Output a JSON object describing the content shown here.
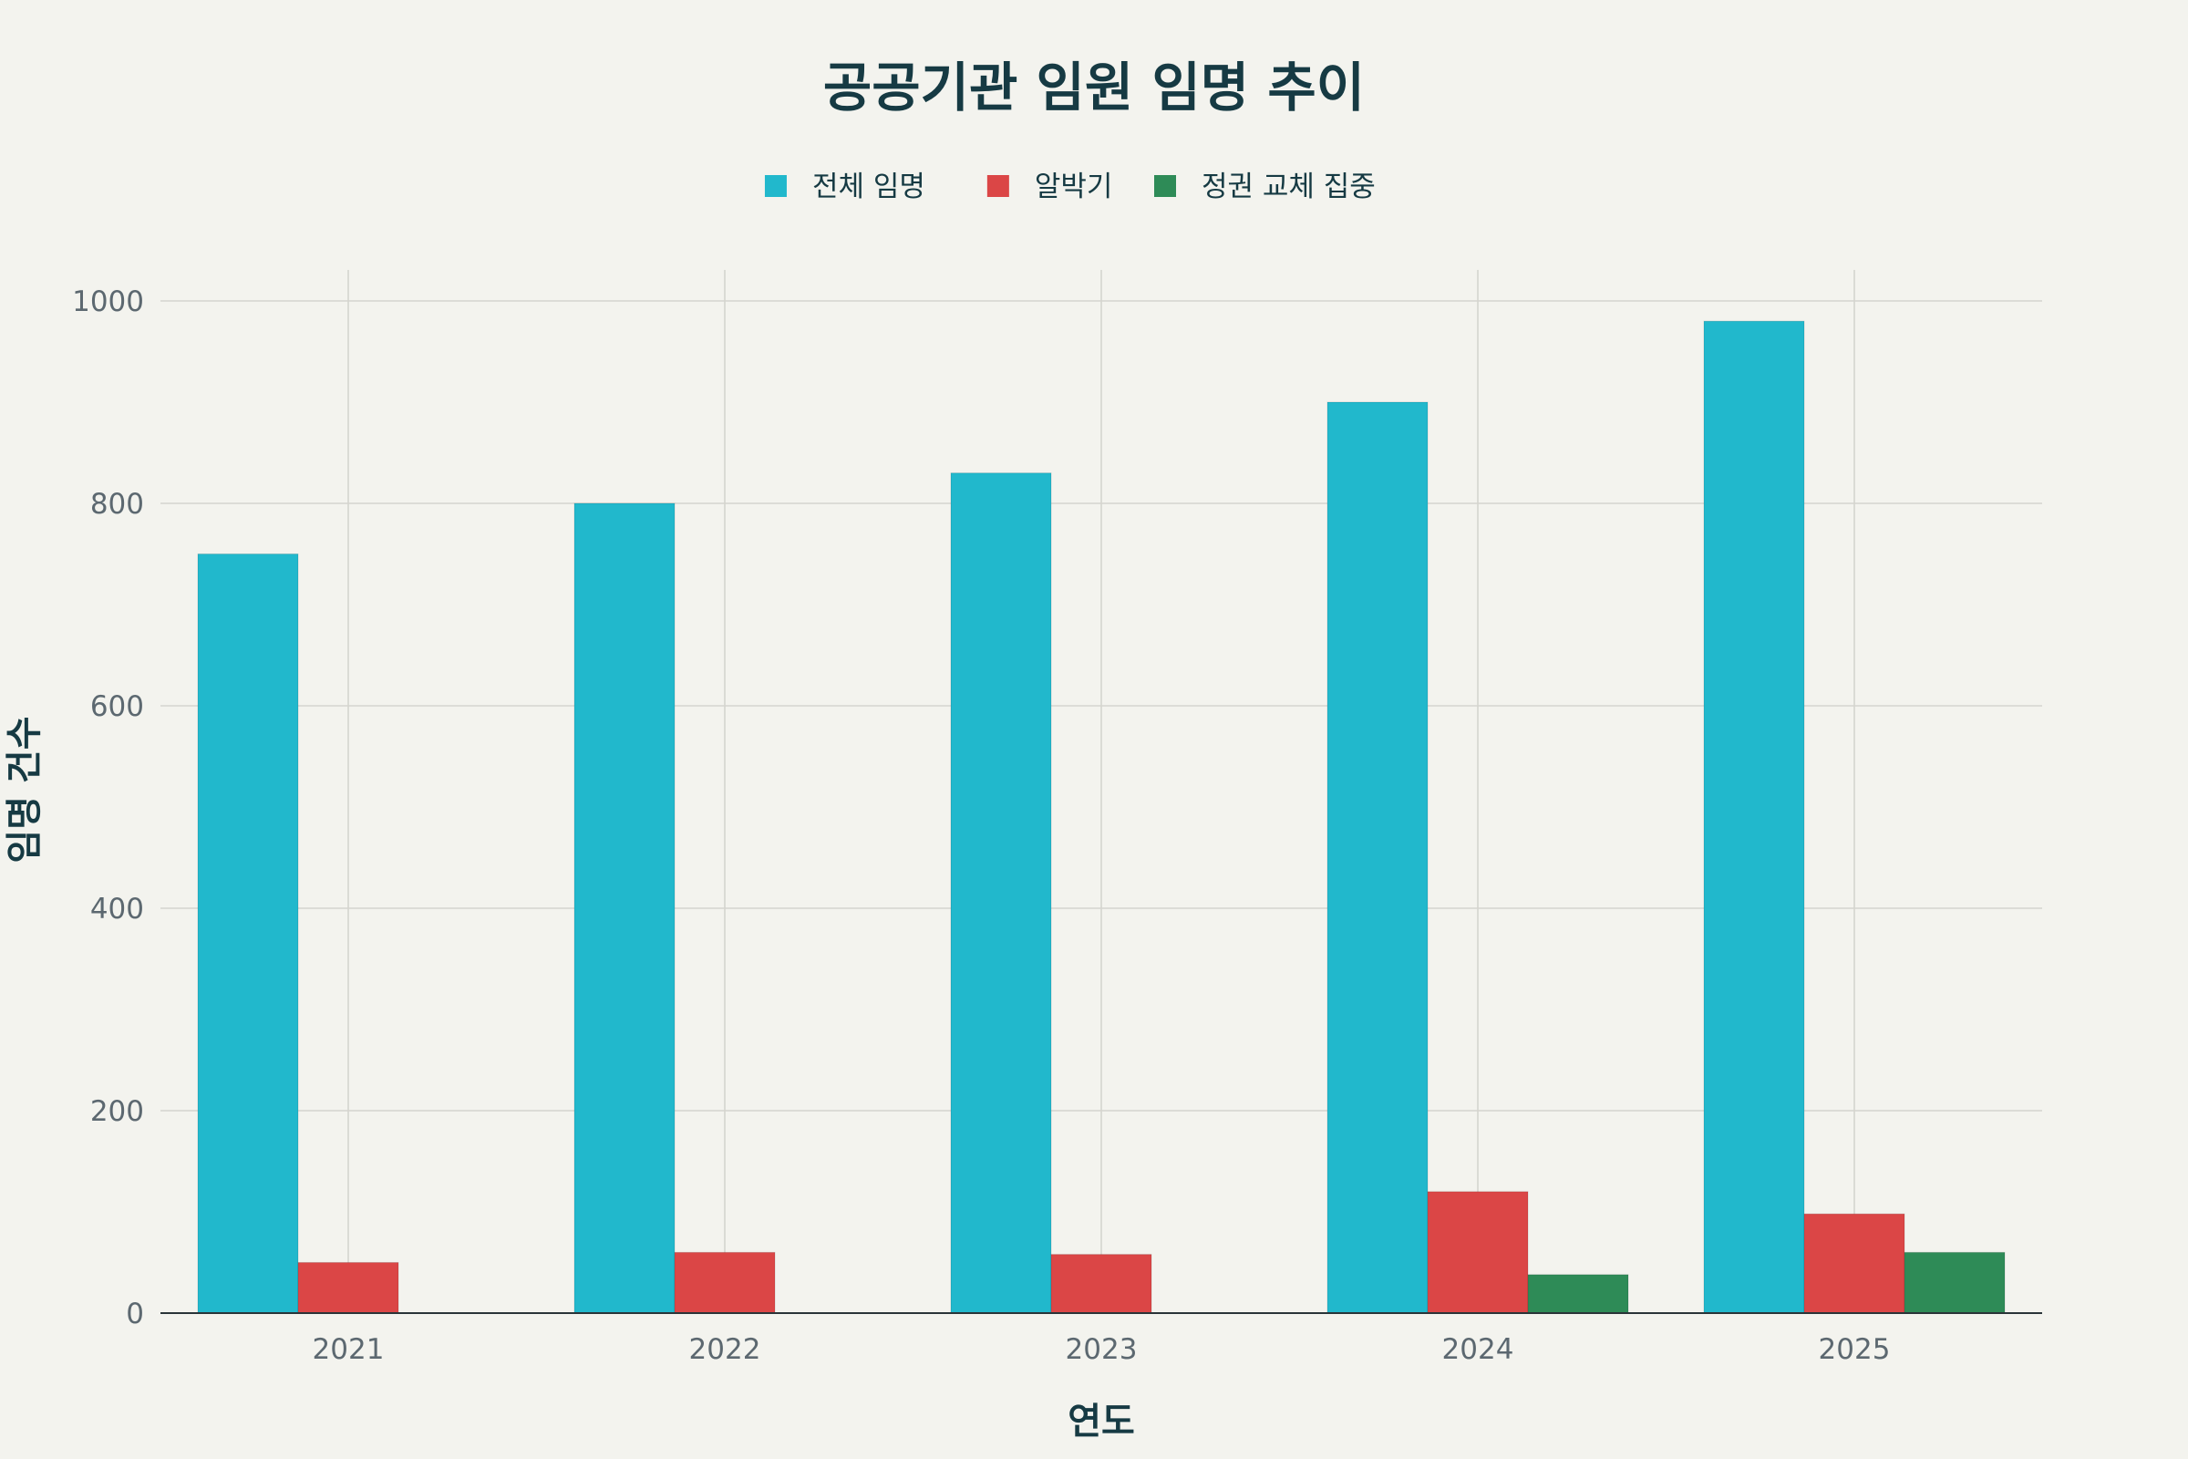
{
  "chart_data": {
    "type": "bar",
    "title": "공공기관 임원 임명 추이",
    "xlabel": "연도",
    "ylabel": "임명 건수",
    "categories": [
      "2021",
      "2022",
      "2023",
      "2024",
      "2025"
    ],
    "series": [
      {
        "name": "전체 임명",
        "color": "#21b8cc",
        "values": [
          750,
          800,
          830,
          900,
          980
        ]
      },
      {
        "name": "알박기",
        "color": "#db4646",
        "values": [
          50,
          60,
          58,
          120,
          98
        ]
      },
      {
        "name": "정권 교체 집중",
        "color": "#2e8b57",
        "values": [
          0,
          0,
          0,
          38,
          60
        ]
      }
    ],
    "ylim": [
      0,
      1030
    ],
    "yticks": [
      0,
      200,
      400,
      600,
      800,
      1000
    ],
    "grid": true,
    "legend_position": "top-center"
  }
}
